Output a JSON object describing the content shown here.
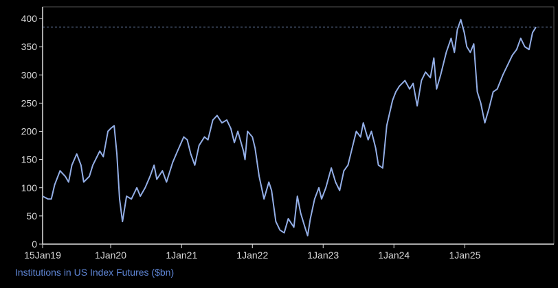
{
  "chart_data": {
    "type": "line",
    "x_label": "Institutions in US Index Futures ($bn)",
    "xlim": [
      "2019-01-15",
      "2026-01-10"
    ],
    "xticks": [
      {
        "value": "2019-01-15",
        "label": "15Jan19"
      },
      {
        "value": "2020-01-01",
        "label": "1Jan20"
      },
      {
        "value": "2021-01-01",
        "label": "1Jan21"
      },
      {
        "value": "2022-01-01",
        "label": "1Jan22"
      },
      {
        "value": "2023-01-01",
        "label": "1Jan23"
      },
      {
        "value": "2024-01-01",
        "label": "1Jan24"
      },
      {
        "value": "2025-01-01",
        "label": "1Jan25"
      }
    ],
    "ylim": [
      0,
      400
    ],
    "yticks": [
      0,
      50,
      100,
      150,
      200,
      250,
      300,
      350,
      400
    ],
    "series": [
      {
        "color": "#93aee6",
        "x": [
          "2019-01-15",
          "2019-02-12",
          "2019-03-01",
          "2019-03-18",
          "2019-04-15",
          "2019-05-12",
          "2019-05-29",
          "2019-06-15",
          "2019-07-10",
          "2019-08-01",
          "2019-08-15",
          "2019-09-13",
          "2019-10-01",
          "2019-11-06",
          "2019-11-24",
          "2019-12-18",
          "2020-01-01",
          "2020-01-19",
          "2020-02-02",
          "2020-02-16",
          "2020-03-02",
          "2020-03-23",
          "2020-04-17",
          "2020-05-15",
          "2020-06-02",
          "2020-06-27",
          "2020-07-22",
          "2020-08-12",
          "2020-08-26",
          "2020-09-24",
          "2020-10-15",
          "2020-11-16",
          "2020-12-11",
          "2021-01-12",
          "2021-01-30",
          "2021-02-17",
          "2021-03-10",
          "2021-04-01",
          "2021-04-29",
          "2021-05-17",
          "2021-06-11",
          "2021-07-03",
          "2021-07-28",
          "2021-08-22",
          "2021-09-12",
          "2021-09-30",
          "2021-10-18",
          "2021-11-16",
          "2021-11-24",
          "2021-12-07",
          "2022-01-01",
          "2022-01-15",
          "2022-02-05",
          "2022-03-02",
          "2022-03-27",
          "2022-04-10",
          "2022-05-02",
          "2022-05-23",
          "2022-06-14",
          "2022-07-05",
          "2022-08-03",
          "2022-08-21",
          "2022-09-07",
          "2022-09-29",
          "2022-10-13",
          "2022-10-27",
          "2022-11-18",
          "2022-12-10",
          "2022-12-24",
          "2023-01-15",
          "2023-02-12",
          "2023-03-06",
          "2023-03-27",
          "2023-04-18",
          "2023-05-09",
          "2023-06-03",
          "2023-06-21",
          "2023-07-13",
          "2023-07-27",
          "2023-08-21",
          "2023-09-07",
          "2023-09-29",
          "2023-10-13",
          "2023-11-04",
          "2023-11-25",
          "2023-12-25",
          "2024-01-11",
          "2024-01-29",
          "2024-02-27",
          "2024-03-22",
          "2024-04-09",
          "2024-04-30",
          "2024-05-22",
          "2024-06-12",
          "2024-07-07",
          "2024-07-25",
          "2024-08-08",
          "2024-08-29",
          "2024-09-27",
          "2024-10-22",
          "2024-11-08",
          "2024-11-23",
          "2024-12-11",
          "2024-12-29",
          "2025-01-11",
          "2025-01-29",
          "2025-02-16",
          "2025-03-06",
          "2025-03-24",
          "2025-04-14",
          "2025-05-05",
          "2025-05-27",
          "2025-06-17",
          "2025-07-16",
          "2025-08-13",
          "2025-09-03",
          "2025-09-25",
          "2025-10-16",
          "2025-11-06",
          "2025-11-28",
          "2025-12-16",
          "2026-01-03"
        ],
        "values": [
          85,
          80,
          80,
          105,
          130,
          120,
          110,
          140,
          160,
          140,
          110,
          120,
          140,
          165,
          155,
          200,
          205,
          210,
          160,
          80,
          40,
          85,
          80,
          100,
          85,
          100,
          120,
          140,
          115,
          130,
          110,
          145,
          165,
          190,
          185,
          160,
          140,
          175,
          190,
          185,
          220,
          228,
          215,
          220,
          205,
          180,
          200,
          165,
          150,
          200,
          190,
          170,
          120,
          80,
          110,
          95,
          40,
          25,
          20,
          45,
          30,
          85,
          55,
          30,
          15,
          45,
          80,
          100,
          80,
          100,
          135,
          110,
          95,
          130,
          140,
          175,
          200,
          190,
          215,
          185,
          200,
          170,
          140,
          135,
          210,
          255,
          270,
          280,
          290,
          275,
          285,
          245,
          290,
          305,
          295,
          330,
          275,
          300,
          340,
          365,
          340,
          380,
          398,
          375,
          350,
          340,
          355,
          270,
          250,
          215,
          240,
          270,
          275,
          300,
          320,
          335,
          345,
          365,
          350,
          345,
          375,
          385
        ]
      }
    ]
  }
}
